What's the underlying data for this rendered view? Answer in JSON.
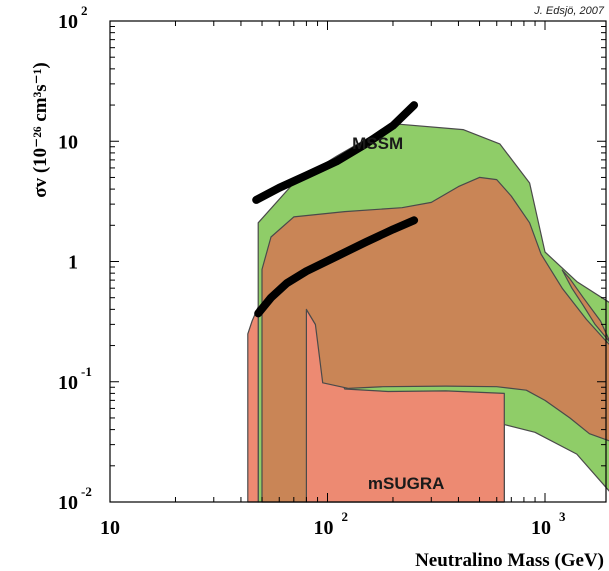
{
  "chart_data": {
    "type": "area",
    "credit": "J. Edsjö, 2007",
    "xlabel": "Neutralino Mass (GeV)",
    "ylabel": "σv (10⁻²⁶ cm³s⁻¹)",
    "x_scale": "log",
    "y_scale": "log",
    "xlim": [
      10,
      2000
    ],
    "ylim": [
      0.01,
      100
    ],
    "x_ticks": [
      {
        "base": "10",
        "exp": "",
        "value": 10
      },
      {
        "base": "10",
        "exp": "2",
        "value": 100
      },
      {
        "base": "10",
        "exp": "3",
        "value": 1000
      }
    ],
    "y_ticks": [
      {
        "base": "10",
        "exp": "-2",
        "value": 0.01
      },
      {
        "base": "10",
        "exp": "-1",
        "value": 0.1
      },
      {
        "base": "1",
        "exp": "",
        "value": 1
      },
      {
        "base": "10",
        "exp": "",
        "value": 10
      },
      {
        "base": "10",
        "exp": "2",
        "value": 100
      }
    ],
    "regions": [
      {
        "name": "MSSM",
        "label": "MSSM",
        "label_at": [
          170,
          8.6
        ],
        "color": "#8fcd68",
        "outline": "#4a4a4a",
        "points": [
          [
            48,
            0.01
          ],
          [
            48,
            2.1
          ],
          [
            70,
            4.5
          ],
          [
            110,
            7.5
          ],
          [
            200,
            14.0
          ],
          [
            420,
            12.5
          ],
          [
            620,
            9.5
          ],
          [
            850,
            4.5
          ],
          [
            1000,
            1.2
          ],
          [
            1400,
            0.68
          ],
          [
            2000,
            0.45
          ],
          [
            2000,
            0.012
          ],
          [
            1400,
            0.025
          ],
          [
            900,
            0.038
          ],
          [
            650,
            0.044
          ],
          [
            650,
            0.01
          ]
        ]
      },
      {
        "name": "mSUGRA",
        "label": "mSUGRA",
        "label_at": [
          230,
          0.0128
        ],
        "color": "#ed8a72",
        "outline": "#4a4a4a",
        "points": [
          [
            43,
            0.01
          ],
          [
            43,
            0.25
          ],
          [
            45,
            0.32
          ],
          [
            48,
            0.42
          ],
          [
            48,
            0.01
          ]
        ]
      },
      {
        "name": "mSUGRA",
        "label": "",
        "color": "#ed8a72",
        "outline": "#4a4a4a",
        "points": [
          [
            80,
            0.01
          ],
          [
            80,
            0.4
          ],
          [
            88,
            0.3
          ],
          [
            120,
            0.087
          ],
          [
            190,
            0.083
          ],
          [
            350,
            0.084
          ],
          [
            650,
            0.08
          ],
          [
            650,
            0.01
          ]
        ]
      },
      {
        "name": "overlap",
        "label": "",
        "color": "#c98556",
        "outline": "#4a4a4a",
        "points": [
          [
            50,
            0.01
          ],
          [
            50,
            0.86
          ],
          [
            55,
            1.6
          ],
          [
            70,
            2.35
          ],
          [
            120,
            2.6
          ],
          [
            220,
            2.8
          ],
          [
            300,
            3.1
          ],
          [
            400,
            4.2
          ],
          [
            500,
            5.0
          ],
          [
            600,
            4.8
          ],
          [
            700,
            3.5
          ],
          [
            850,
            2.1
          ],
          [
            960,
            1.15
          ],
          [
            1200,
            0.6
          ],
          [
            1550,
            0.33
          ],
          [
            1900,
            0.22
          ],
          [
            2000,
            0.2
          ],
          [
            2000,
            0.032
          ],
          [
            1600,
            0.037
          ],
          [
            1300,
            0.05
          ],
          [
            1000,
            0.07
          ],
          [
            820,
            0.085
          ],
          [
            600,
            0.091
          ],
          [
            350,
            0.092
          ],
          [
            180,
            0.091
          ],
          [
            125,
            0.088
          ],
          [
            95,
            0.098
          ],
          [
            88,
            0.3
          ],
          [
            80,
            0.4
          ],
          [
            80,
            0.01
          ]
        ]
      },
      {
        "name": "overlap",
        "label": "",
        "color": "#c98556",
        "outline": "#4a4a4a",
        "points": [
          [
            1200,
            0.85
          ],
          [
            1330,
            0.6
          ],
          [
            1500,
            0.43
          ],
          [
            1700,
            0.3
          ],
          [
            2000,
            0.21
          ],
          [
            1800,
            0.32
          ],
          [
            1500,
            0.5
          ],
          [
            1300,
            0.72
          ],
          [
            1200,
            0.85
          ]
        ]
      }
    ],
    "curves": [
      {
        "name": "upper",
        "color": "#000000",
        "points": [
          [
            47,
            3.25
          ],
          [
            60,
            4.1
          ],
          [
            80,
            5.2
          ],
          [
            110,
            6.8
          ],
          [
            150,
            9.5
          ],
          [
            200,
            13.5
          ],
          [
            250,
            20.0
          ]
        ]
      },
      {
        "name": "lower",
        "color": "#000000",
        "points": [
          [
            48,
            0.37
          ],
          [
            55,
            0.5
          ],
          [
            65,
            0.66
          ],
          [
            80,
            0.83
          ],
          [
            110,
            1.1
          ],
          [
            150,
            1.45
          ],
          [
            200,
            1.85
          ],
          [
            250,
            2.2
          ]
        ]
      }
    ]
  }
}
